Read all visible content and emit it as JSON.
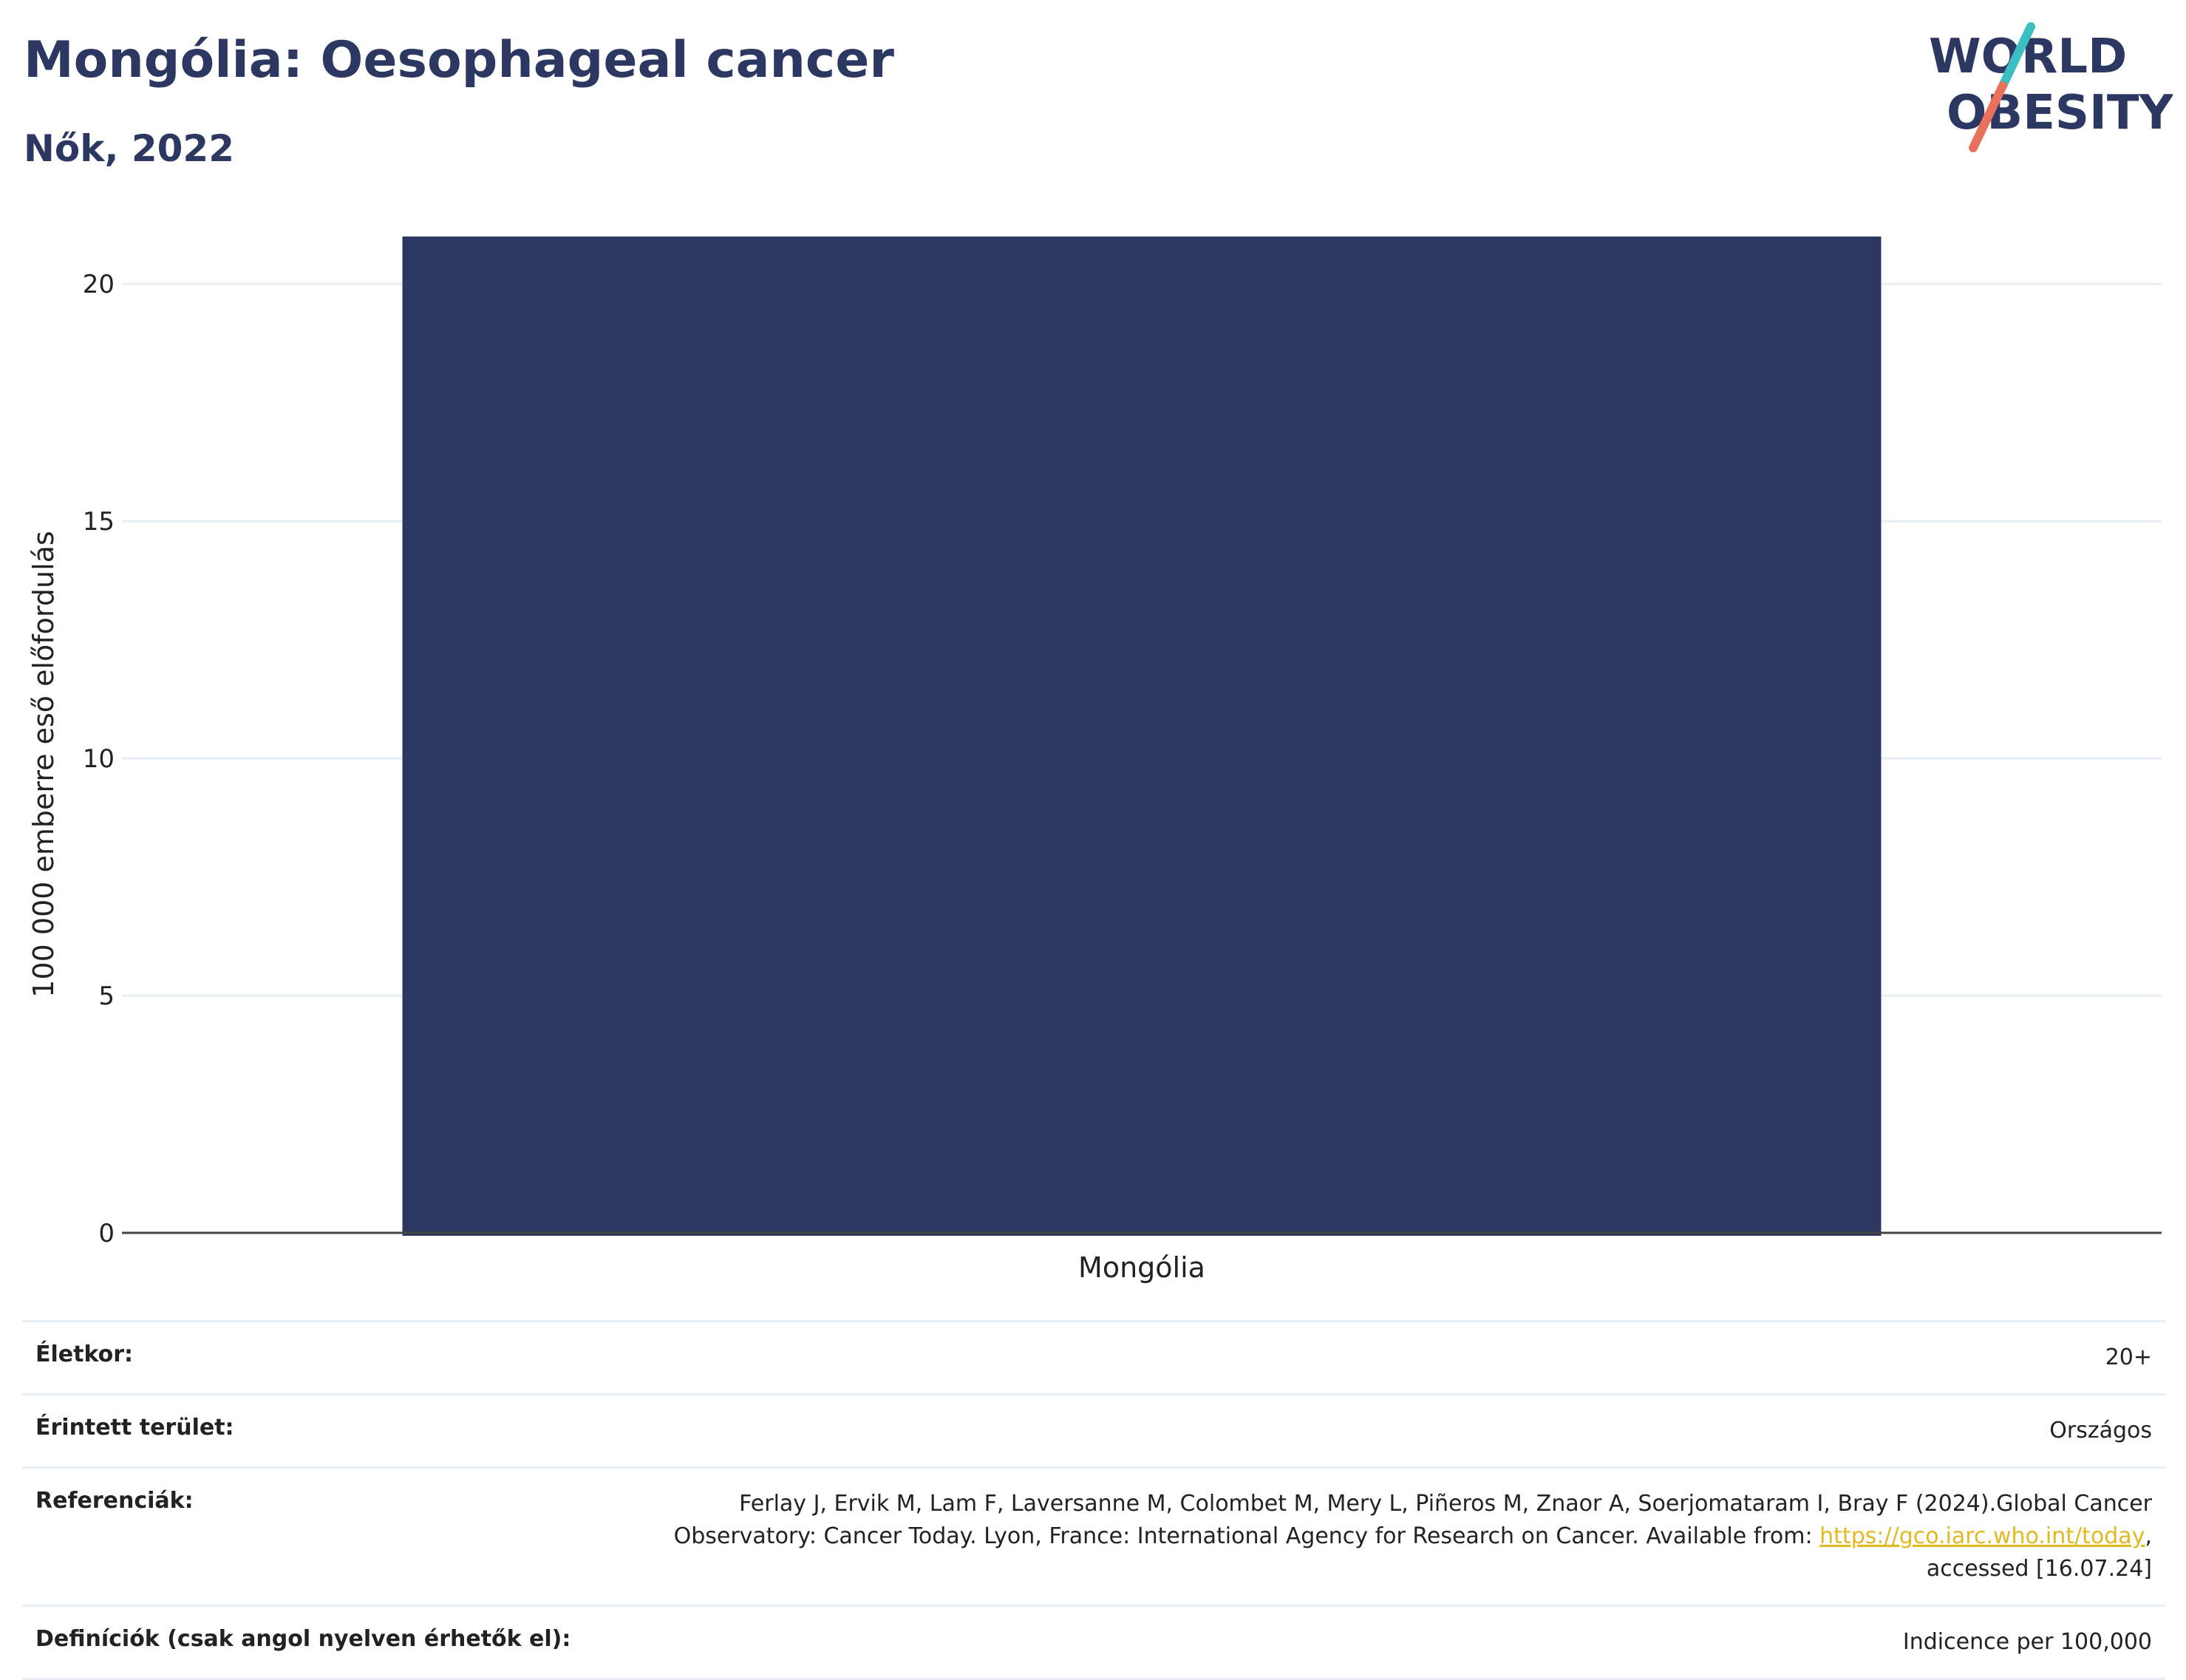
{
  "header": {
    "title": "Mongólia: Oesophageal cancer",
    "subtitle": "Nők, 2022"
  },
  "logo": {
    "line1": "WORLD",
    "line2": "OBESITY",
    "colors": {
      "text": "#2c3862",
      "slash_top": "#3bbfc2",
      "slash_bottom": "#e8715c"
    }
  },
  "chart_data": {
    "type": "bar",
    "categories": [
      "Mongólia"
    ],
    "values": [
      21.0
    ],
    "title": "",
    "xlabel": "",
    "ylabel": "100 000 emberre eső előfordulás",
    "ylim": [
      0,
      21.0
    ],
    "yticks": [
      0,
      5,
      10,
      15,
      20
    ],
    "grid": true,
    "bar_color": "#2c3862"
  },
  "meta": {
    "rows": [
      {
        "label": "Életkor:",
        "value": "20+"
      },
      {
        "label": "Érintett terület:",
        "value": "Országos"
      },
      {
        "label": "Referenciák:",
        "value_pre": "Ferlay J, Ervik M, Lam F, Laversanne M, Colombet M, Mery L, Piñeros M, Znaor A, Soerjomataram I, Bray F (2024).Global Cancer Observatory: Cancer Today. Lyon, France: International Agency for Research on Cancer. Available from: ",
        "link": "https://gco.iarc.who.int/today",
        "value_post": ", accessed [16.07.24]"
      },
      {
        "label": "Definíciók (csak angol nyelven érhetők el):",
        "value": "Indicence per 100,000"
      }
    ]
  }
}
